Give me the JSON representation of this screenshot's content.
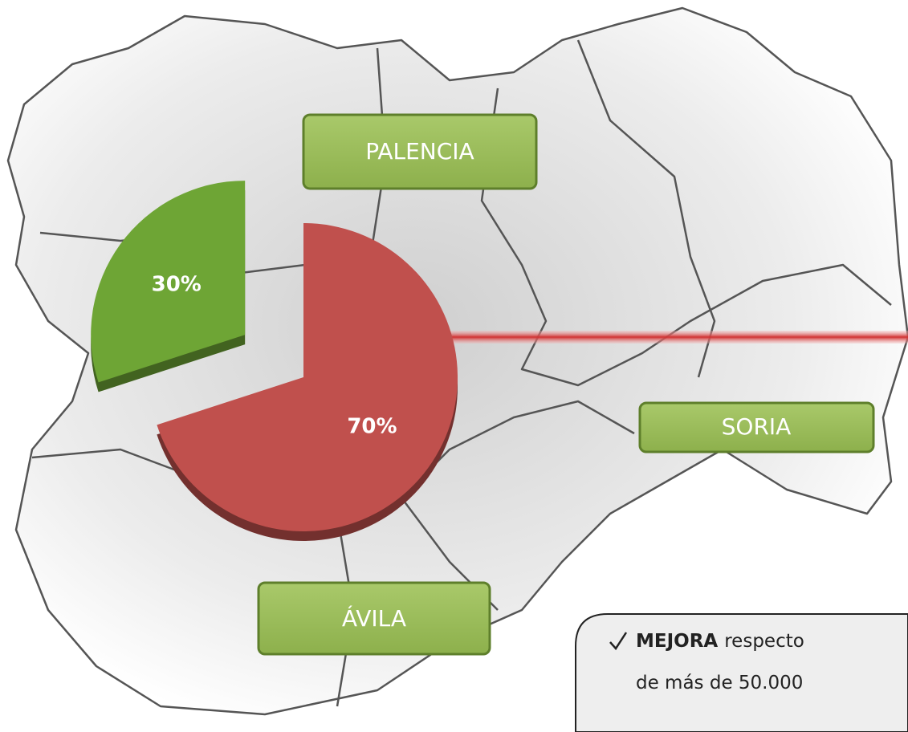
{
  "chart_data": {
    "type": "pie",
    "values": [
      30,
      70
    ],
    "value_labels": [
      "30%",
      "70%"
    ],
    "colors": [
      "#6ea535",
      "#c0504d"
    ]
  },
  "labels": [
    "PALENCIA",
    "SORIA",
    "ÁVILA"
  ],
  "note": {
    "bold": "MEJORA",
    "first_line": "respecto",
    "second_line": "de más de 50.000"
  }
}
